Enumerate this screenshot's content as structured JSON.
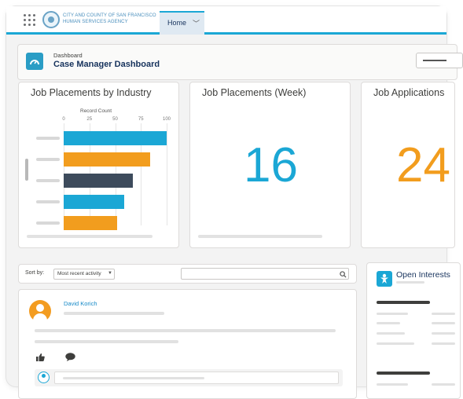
{
  "nav": {
    "agency_line1": "CITY AND COUNTY OF SAN FRANCISCO",
    "agency_line2": "HUMAN SERVICES AGENCY",
    "tab_home": "Home"
  },
  "header": {
    "kicker": "Dashboard",
    "title": "Case Manager Dashboard"
  },
  "cards": {
    "industry_title": "Job Placements by Industry",
    "week_title": "Job Placements (Week)",
    "week_value": "16",
    "applications_title": "Job Applications",
    "applications_value": "24"
  },
  "chart_data": {
    "type": "bar",
    "orientation": "horizontal",
    "title": "Job Placements by Industry",
    "xlabel": "Record Count",
    "xlim": [
      0,
      100
    ],
    "ticks": [
      "0",
      "25",
      "50",
      "75",
      "100"
    ],
    "values": [
      100,
      84,
      67,
      59,
      52
    ],
    "colors": [
      "#1ba7d5",
      "#f29d1e",
      "#3d4b5c",
      "#1ba7d5",
      "#f29d1e"
    ]
  },
  "feed": {
    "sort_label": "Sort by:",
    "sort_value": "Most recent activity",
    "author": "David Korich"
  },
  "open_interest": {
    "title": "Open Interests"
  },
  "colors": {
    "accent": "#1ba7d5",
    "orange": "#f29d1e",
    "navy": "#16325c"
  }
}
